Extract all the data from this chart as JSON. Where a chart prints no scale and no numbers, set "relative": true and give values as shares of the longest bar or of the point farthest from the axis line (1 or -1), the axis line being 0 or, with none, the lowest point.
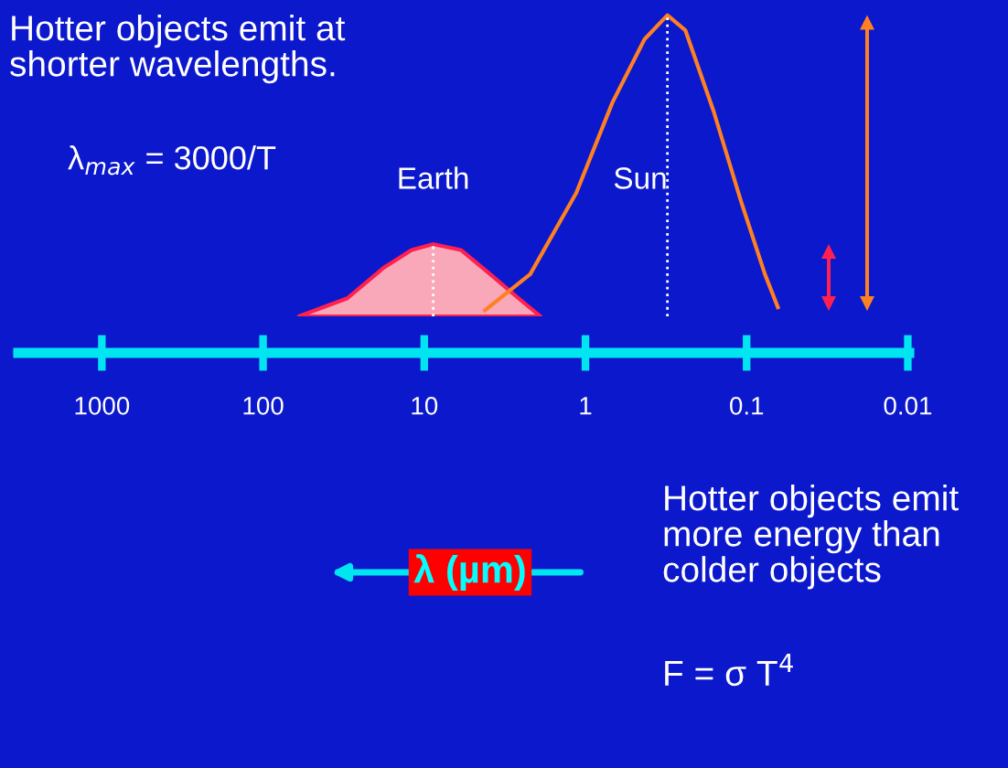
{
  "chart_data": {
    "type": "line",
    "relative": true,
    "log": "x",
    "grid": false,
    "xlabel": "λ (µm)",
    "xlim": [
      3300,
      0.0098
    ],
    "xticks": [
      1000,
      100,
      10,
      1,
      0.1,
      0.01
    ],
    "series": [
      {
        "name": "Earth",
        "type": "area",
        "color": "#ff2050",
        "x": [
          60,
          30,
          18,
          12,
          8.8,
          5.9,
          3.9,
          2.6,
          1.9
        ],
        "values": [
          0,
          0.06,
          0.16,
          0.22,
          0.24,
          0.22,
          0.14,
          0.06,
          0
        ]
      },
      {
        "name": "Sun",
        "color": "#ff8020",
        "x": [
          4.2,
          2.2,
          1.14,
          0.68,
          0.43,
          0.31,
          0.24,
          0.16,
          0.108,
          0.077,
          0.064
        ],
        "values": [
          0.02,
          0.14,
          0.41,
          0.71,
          0.92,
          1,
          0.95,
          0.68,
          0.38,
          0.14,
          0.03
        ]
      }
    ],
    "ref_lines": [
      {
        "axis": "x",
        "value": 8.8,
        "color": "#ffffff",
        "line_style": "dotted"
      },
      {
        "axis": "x",
        "value": 0.31,
        "color": "#ffffff",
        "line_style": "dotted"
      }
    ],
    "annotations": [
      "Hotter objects emit at\nshorter wavelengths.",
      "λ$_{max}$ = 3000/T",
      "Hotter objects emit\nmore energy than\ncolder objects",
      "F = σ T$^{4}$"
    ]
  }
}
